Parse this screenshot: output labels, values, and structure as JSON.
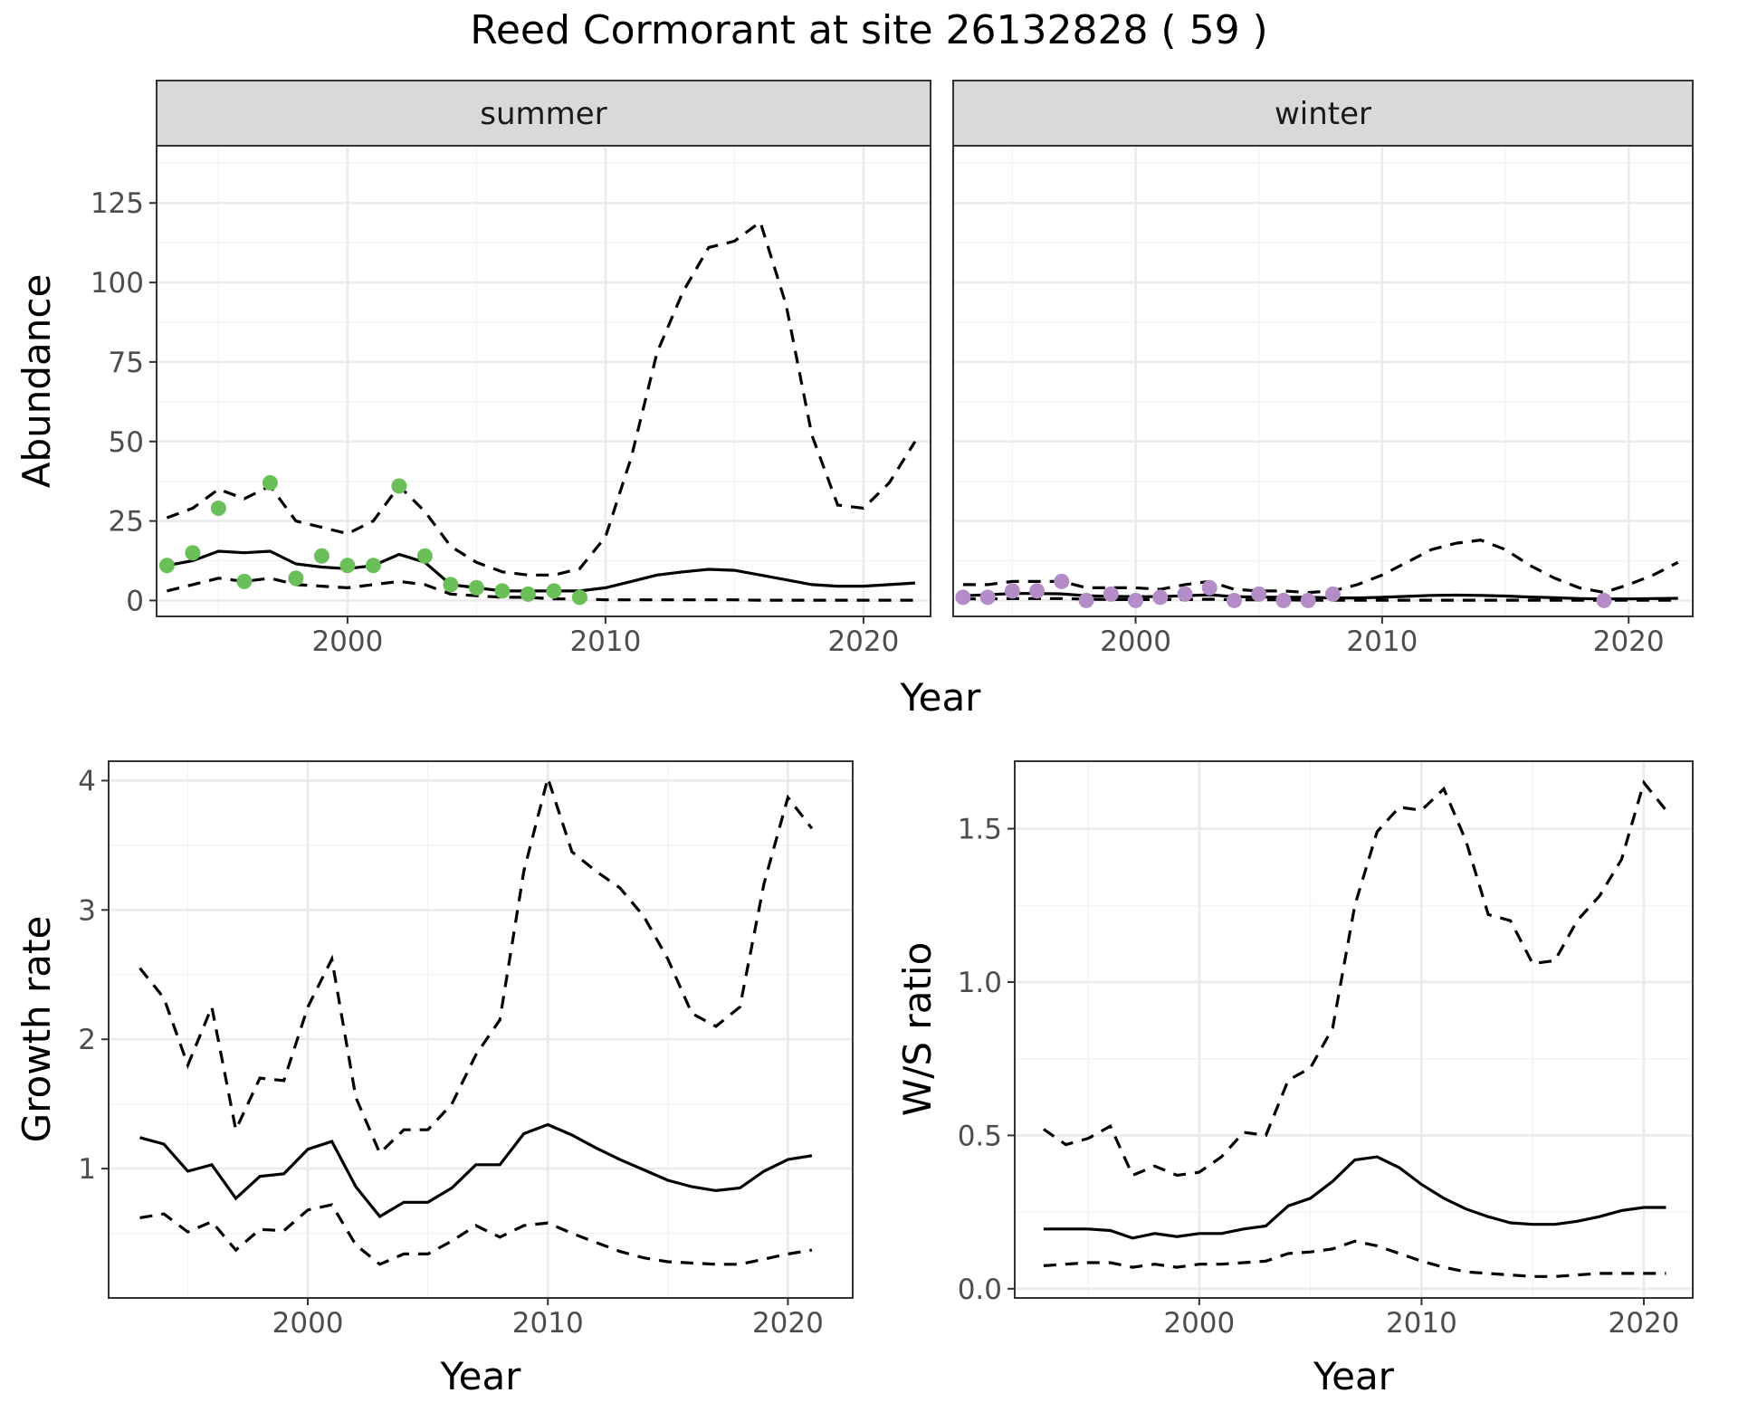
{
  "title": "Reed Cormorant at site 26132828 ( 59 )",
  "colors": {
    "summer_points": "#6abf59",
    "winter_points": "#b48cc8",
    "lines": "#000000"
  },
  "chart_data": [
    {
      "id": "abundance",
      "type": "line",
      "facets": [
        "summer",
        "winter"
      ],
      "xlabel": "Year",
      "ylabel": "Abundance",
      "xlim": [
        1992.6,
        2022.6
      ],
      "ylim": [
        -5,
        143
      ],
      "xticks": [
        2000,
        2010,
        2020
      ],
      "yticks": [
        0,
        25,
        50,
        75,
        100,
        125
      ],
      "grid": true,
      "legend": "none",
      "panels": [
        {
          "facet": "summer",
          "x": [
            1993,
            1994,
            1995,
            1996,
            1997,
            1998,
            1999,
            2000,
            2001,
            2002,
            2003,
            2004,
            2005,
            2006,
            2007,
            2008,
            2009,
            2010,
            2011,
            2012,
            2013,
            2014,
            2015,
            2016,
            2017,
            2018,
            2019,
            2020,
            2021,
            2022
          ],
          "mid": [
            11,
            12.5,
            15.5,
            15,
            15.5,
            11.5,
            10.5,
            10,
            11,
            14.5,
            12,
            5,
            4,
            3,
            3,
            3,
            3,
            4,
            6,
            8,
            9,
            9.8,
            9.5,
            8,
            6.5,
            5,
            4.5,
            4.5,
            5,
            5.5
          ],
          "upper": [
            26,
            29,
            35,
            32,
            36,
            25,
            23,
            21,
            25,
            36,
            28,
            17,
            12,
            9,
            8,
            8,
            10,
            20,
            45,
            78,
            97,
            111,
            113,
            119,
            93,
            52,
            30,
            29,
            37,
            50
          ],
          "lower": [
            3,
            5,
            7,
            6,
            7,
            5,
            4.5,
            4,
            5,
            6,
            5,
            2,
            1.5,
            1,
            1,
            0.5,
            0.5,
            0.2,
            0.2,
            0.2,
            0.2,
            0.2,
            0.2,
            0.1,
            0.1,
            0.1,
            0.1,
            0.1,
            0.1,
            0.1
          ],
          "observed": [
            {
              "x": 1993,
              "y": 11
            },
            {
              "x": 1994,
              "y": 15
            },
            {
              "x": 1995,
              "y": 29
            },
            {
              "x": 1996,
              "y": 6
            },
            {
              "x": 1997,
              "y": 37
            },
            {
              "x": 1998,
              "y": 7
            },
            {
              "x": 1999,
              "y": 14
            },
            {
              "x": 2000,
              "y": 11
            },
            {
              "x": 2001,
              "y": 11
            },
            {
              "x": 2002,
              "y": 36
            },
            {
              "x": 2003,
              "y": 14
            },
            {
              "x": 2004,
              "y": 5
            },
            {
              "x": 2005,
              "y": 4
            },
            {
              "x": 2006,
              "y": 3
            },
            {
              "x": 2007,
              "y": 2
            },
            {
              "x": 2008,
              "y": 3
            },
            {
              "x": 2009,
              "y": 1
            }
          ]
        },
        {
          "facet": "winter",
          "x": [
            1993,
            1994,
            1995,
            1996,
            1997,
            1998,
            1999,
            2000,
            2001,
            2002,
            2003,
            2004,
            2005,
            2006,
            2007,
            2008,
            2009,
            2010,
            2011,
            2012,
            2013,
            2014,
            2015,
            2016,
            2017,
            2018,
            2019,
            2020,
            2021,
            2022
          ],
          "mid": [
            1.5,
            1.8,
            2.2,
            2.2,
            2.1,
            1.5,
            1.3,
            1.2,
            1.2,
            1.5,
            1.8,
            1.2,
            1.1,
            1.0,
            1.0,
            0.8,
            0.8,
            1.0,
            1.3,
            1.6,
            1.7,
            1.6,
            1.4,
            1.1,
            0.9,
            0.6,
            0.5,
            0.5,
            0.6,
            0.7
          ],
          "upper": [
            5,
            5,
            6,
            6,
            6,
            4,
            4,
            4,
            3.5,
            5,
            6,
            3.5,
            3,
            3,
            2.5,
            3,
            5,
            8,
            12,
            16,
            18,
            19,
            16,
            11,
            7,
            4,
            2.5,
            5,
            8,
            12
          ],
          "lower": [
            0.5,
            0.5,
            0.6,
            0.6,
            0.6,
            0.4,
            0.3,
            0.3,
            0.3,
            0.3,
            0.4,
            0.2,
            0.2,
            0.2,
            0.1,
            0.1,
            0.1,
            0.1,
            0.1,
            0.1,
            0.1,
            0.1,
            0.1,
            0.1,
            0.1,
            0.1,
            0.1,
            0.1,
            0.1,
            0.1
          ],
          "observed": [
            {
              "x": 1993,
              "y": 1
            },
            {
              "x": 1994,
              "y": 1
            },
            {
              "x": 1995,
              "y": 3
            },
            {
              "x": 1996,
              "y": 3
            },
            {
              "x": 1997,
              "y": 6
            },
            {
              "x": 1998,
              "y": 0
            },
            {
              "x": 1999,
              "y": 2
            },
            {
              "x": 2000,
              "y": 0
            },
            {
              "x": 2001,
              "y": 1
            },
            {
              "x": 2002,
              "y": 2
            },
            {
              "x": 2003,
              "y": 4
            },
            {
              "x": 2004,
              "y": 0
            },
            {
              "x": 2005,
              "y": 2
            },
            {
              "x": 2006,
              "y": 0
            },
            {
              "x": 2007,
              "y": 0
            },
            {
              "x": 2008,
              "y": 2
            },
            {
              "x": 2019,
              "y": 0
            }
          ]
        }
      ]
    },
    {
      "id": "growth",
      "type": "line",
      "xlabel": "Year",
      "ylabel": "Growth rate",
      "xlim": [
        1991.7,
        2022.7
      ],
      "ylim": [
        0.0,
        4.15
      ],
      "xticks": [
        2000,
        2010,
        2020
      ],
      "yticks": [
        1,
        2,
        3,
        4
      ],
      "grid": true,
      "legend": "none",
      "x": [
        1993,
        1994,
        1995,
        1996,
        1997,
        1998,
        1999,
        2000,
        2001,
        2002,
        2003,
        2004,
        2005,
        2006,
        2007,
        2008,
        2009,
        2010,
        2011,
        2012,
        2013,
        2014,
        2015,
        2016,
        2017,
        2018,
        2019,
        2020,
        2021
      ],
      "mid": [
        1.24,
        1.19,
        0.98,
        1.03,
        0.77,
        0.94,
        0.96,
        1.15,
        1.21,
        0.86,
        0.63,
        0.74,
        0.74,
        0.85,
        1.03,
        1.03,
        1.27,
        1.34,
        1.26,
        1.16,
        1.07,
        0.99,
        0.91,
        0.86,
        0.83,
        0.85,
        0.98,
        1.07,
        1.1
      ],
      "upper": [
        2.55,
        2.32,
        1.8,
        2.25,
        1.3,
        1.7,
        1.68,
        2.25,
        2.62,
        1.55,
        1.12,
        1.3,
        1.3,
        1.5,
        1.88,
        2.15,
        3.3,
        4.02,
        3.45,
        3.3,
        3.17,
        2.95,
        2.62,
        2.2,
        2.1,
        2.25,
        3.2,
        3.87,
        3.63
      ],
      "lower": [
        0.62,
        0.65,
        0.51,
        0.59,
        0.37,
        0.53,
        0.52,
        0.68,
        0.72,
        0.41,
        0.26,
        0.34,
        0.34,
        0.44,
        0.56,
        0.47,
        0.56,
        0.58,
        0.5,
        0.43,
        0.36,
        0.31,
        0.28,
        0.27,
        0.26,
        0.26,
        0.3,
        0.34,
        0.37
      ]
    },
    {
      "id": "ws_ratio",
      "type": "line",
      "xlabel": "Year",
      "ylabel": "W/S ratio",
      "xlim": [
        1991.7,
        2022.2
      ],
      "ylim": [
        -0.03,
        1.72
      ],
      "xticks": [
        2000,
        2010,
        2020
      ],
      "yticks": [
        0.0,
        0.5,
        1.0,
        1.5
      ],
      "ytick_labels": [
        "0.0",
        "0.5",
        "1.0",
        "1.5"
      ],
      "grid": true,
      "legend": "none",
      "x": [
        1993,
        1994,
        1995,
        1996,
        1997,
        1998,
        1999,
        2000,
        2001,
        2002,
        2003,
        2004,
        2005,
        2006,
        2007,
        2008,
        2009,
        2010,
        2011,
        2012,
        2013,
        2014,
        2015,
        2016,
        2017,
        2018,
        2019,
        2020,
        2021
      ],
      "mid": [
        0.195,
        0.195,
        0.195,
        0.19,
        0.165,
        0.18,
        0.17,
        0.18,
        0.18,
        0.195,
        0.205,
        0.27,
        0.295,
        0.35,
        0.42,
        0.43,
        0.395,
        0.34,
        0.295,
        0.26,
        0.235,
        0.215,
        0.21,
        0.21,
        0.22,
        0.235,
        0.255,
        0.265,
        0.265
      ],
      "upper": [
        0.52,
        0.47,
        0.49,
        0.53,
        0.37,
        0.4,
        0.37,
        0.38,
        0.43,
        0.51,
        0.5,
        0.68,
        0.72,
        0.85,
        1.25,
        1.49,
        1.57,
        1.56,
        1.63,
        1.46,
        1.22,
        1.2,
        1.06,
        1.07,
        1.2,
        1.28,
        1.4,
        1.65,
        1.56
      ],
      "lower": [
        0.075,
        0.08,
        0.085,
        0.085,
        0.07,
        0.08,
        0.07,
        0.08,
        0.08,
        0.085,
        0.09,
        0.115,
        0.12,
        0.13,
        0.155,
        0.14,
        0.115,
        0.09,
        0.07,
        0.055,
        0.05,
        0.045,
        0.04,
        0.04,
        0.045,
        0.05,
        0.05,
        0.05,
        0.05
      ]
    }
  ]
}
